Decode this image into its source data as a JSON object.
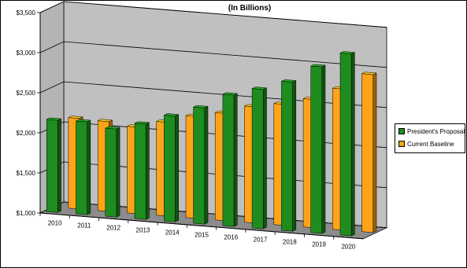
{
  "chart_data": {
    "type": "bar",
    "title": "(In Billions)",
    "categories": [
      "2010",
      "2011",
      "2012",
      "2013",
      "2014",
      "2015",
      "2016",
      "2017",
      "2018",
      "2019",
      "2020"
    ],
    "series": [
      {
        "name": "President's Proposal",
        "color": "#1e8c1e",
        "values": [
          2150,
          2160,
          2100,
          2190,
          2320,
          2450,
          2640,
          2740,
          2860,
          3080,
          3270
        ]
      },
      {
        "name": "Current Baseline",
        "color": "#ffa319",
        "values": [
          2130,
          2120,
          2080,
          2170,
          2270,
          2340,
          2450,
          2510,
          2600,
          2760,
          2970
        ]
      }
    ],
    "y_ticks": [
      "$1,000",
      "$1,500",
      "$2,000",
      "$2,500",
      "$3,000",
      "$3,500"
    ],
    "ylim": [
      1000,
      3500
    ],
    "legend_position": "right",
    "grid": true,
    "three_d": true
  }
}
